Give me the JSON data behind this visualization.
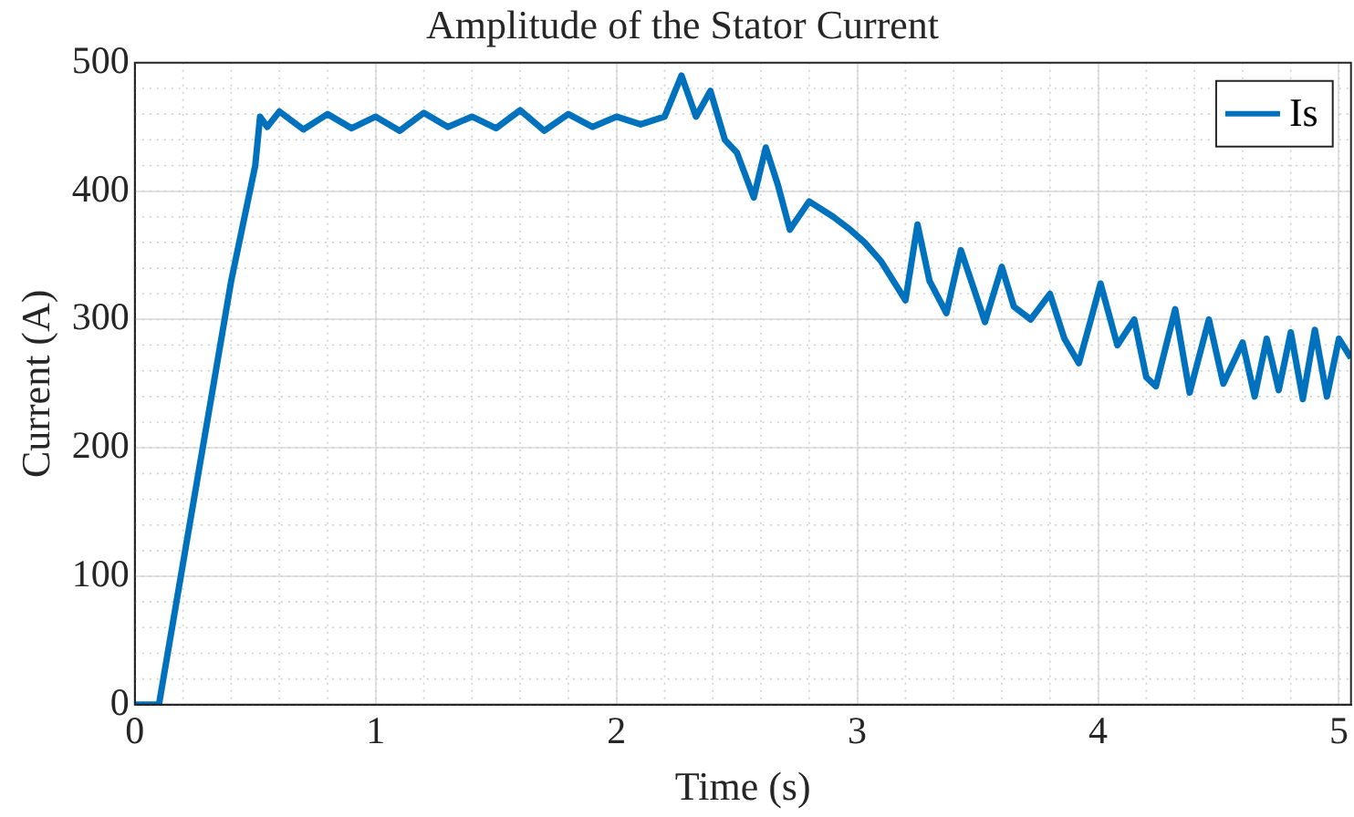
{
  "chart_data": {
    "type": "line",
    "title": "Amplitude of the Stator Current",
    "xlabel": "Time (s)",
    "ylabel": "Current (A)",
    "xlim": [
      0,
      5.05
    ],
    "xticks": [
      0,
      1,
      2,
      3,
      4,
      5
    ],
    "ylim": [
      0,
      500
    ],
    "yticks": [
      0,
      100,
      200,
      300,
      400,
      500
    ],
    "grid": true,
    "legend": "top right",
    "marker": "none",
    "line_style": "solid",
    "series": [
      {
        "name": "Is",
        "color": "#0072bd",
        "x": [
          0,
          0.1,
          0.2,
          0.3,
          0.4,
          0.5,
          0.52,
          0.55,
          0.6,
          0.7,
          0.8,
          0.9,
          1.0,
          1.1,
          1.2,
          1.3,
          1.4,
          1.5,
          1.6,
          1.7,
          1.8,
          1.9,
          2.0,
          2.1,
          2.2,
          2.27,
          2.33,
          2.39,
          2.45,
          2.5,
          2.57,
          2.62,
          2.67,
          2.72,
          2.8,
          2.9,
          2.97,
          3.03,
          3.1,
          3.2,
          3.25,
          3.3,
          3.37,
          3.43,
          3.5,
          3.53,
          3.6,
          3.65,
          3.72,
          3.8,
          3.86,
          3.92,
          3.97,
          4.01,
          4.08,
          4.15,
          4.2,
          4.24,
          4.32,
          4.38,
          4.46,
          4.52,
          4.6,
          4.65,
          4.7,
          4.75,
          4.8,
          4.85,
          4.9,
          4.95,
          5.0,
          5.05
        ],
        "values": [
          0,
          0,
          110,
          220,
          330,
          420,
          458,
          450,
          462,
          448,
          460,
          449,
          458,
          447,
          461,
          450,
          458,
          449,
          463,
          447,
          460,
          450,
          458,
          452,
          458,
          490,
          458,
          478,
          440,
          430,
          395,
          434,
          405,
          370,
          392,
          380,
          370,
          360,
          345,
          315,
          374,
          330,
          305,
          354,
          315,
          298,
          341,
          310,
          300,
          320,
          285,
          266,
          300,
          328,
          280,
          300,
          255,
          248,
          308,
          243,
          300,
          250,
          282,
          240,
          285,
          245,
          290,
          238,
          292,
          240,
          285,
          270
        ]
      }
    ]
  }
}
